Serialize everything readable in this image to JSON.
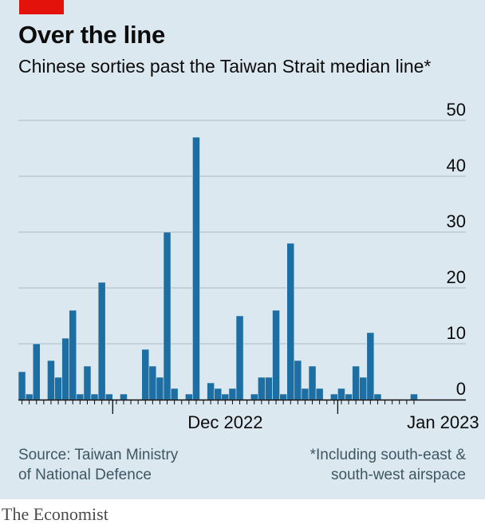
{
  "header": {
    "title": "Over the line",
    "subtitle": "Chinese sorties past the Taiwan Strait median line*"
  },
  "footer": {
    "source_line1": "Source: Taiwan Ministry",
    "source_line2": "of National Defence",
    "footnote_line1": "*Including south-east &",
    "footnote_line2": "south-west airspace",
    "brand": "The Economist"
  },
  "colors": {
    "bar": "#1d6fa3",
    "accent": "#e3120b",
    "background": "#dbe8f0",
    "grid": "#a9b8c0"
  },
  "chart_data": {
    "type": "bar",
    "title": "Over the line",
    "subtitle": "Chinese sorties past the Taiwan Strait median line*",
    "ylim": [
      0,
      50
    ],
    "yticks": [
      0,
      10,
      20,
      30,
      40,
      50
    ],
    "y_axis_position": "right",
    "grid": true,
    "x_start_date": "2022-11-18",
    "x_month_labels": [
      {
        "label": "Dec 2022",
        "date": "2022-12-16"
      },
      {
        "label": "Jan 2023",
        "date": "2023-01-15"
      }
    ],
    "x_month_boundaries": [
      "2022-12-01",
      "2023-01-01"
    ],
    "series": [
      {
        "values": [
          5,
          1,
          10,
          0,
          7,
          4,
          11,
          16,
          1,
          6,
          1,
          21,
          1,
          0,
          1,
          0,
          0,
          9,
          6,
          4,
          30,
          2,
          0,
          1,
          47,
          0,
          3,
          2,
          1,
          2,
          15,
          0,
          1,
          4,
          4,
          16,
          1,
          28,
          7,
          2,
          6,
          2,
          0,
          1,
          2,
          1,
          6,
          4,
          12,
          1,
          0,
          0,
          0,
          0,
          1
        ]
      }
    ]
  }
}
